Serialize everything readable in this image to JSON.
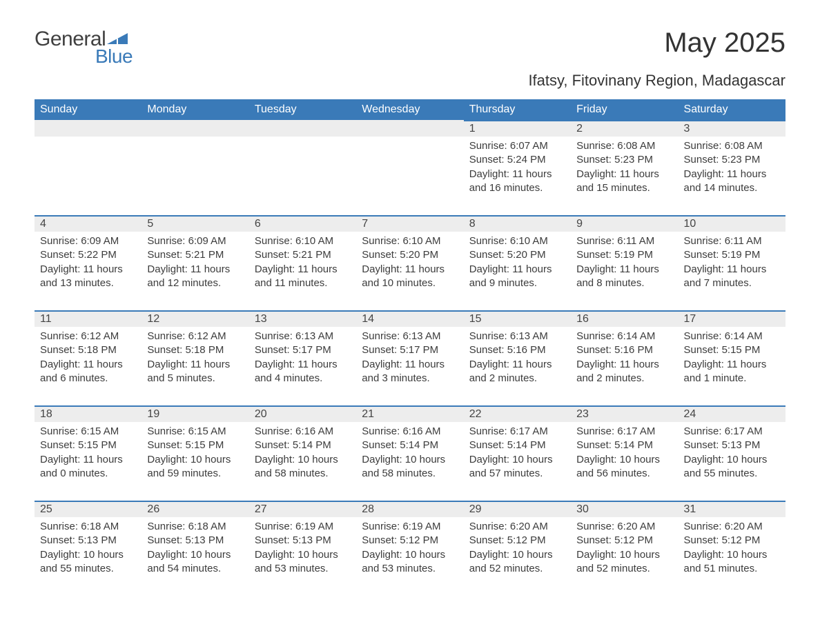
{
  "brand": {
    "text_general": "General",
    "text_blue": "Blue",
    "general_color": "#404040",
    "blue_color": "#3a7ab8",
    "icon_color": "#3a7ab8"
  },
  "title": "May 2025",
  "location": "Ifatsy, Fitovinany Region, Madagascar",
  "colors": {
    "header_bg": "#3a7ab8",
    "header_text": "#ffffff",
    "daynum_bg": "#ededed",
    "day_border_top": "#3a7ab8",
    "body_text": "#3c3c3c",
    "page_bg": "#ffffff"
  },
  "typography": {
    "title_fontsize": 40,
    "location_fontsize": 22,
    "header_fontsize": 16,
    "daynum_fontsize": 16,
    "body_fontsize": 15
  },
  "calendar": {
    "columns": [
      "Sunday",
      "Monday",
      "Tuesday",
      "Wednesday",
      "Thursday",
      "Friday",
      "Saturday"
    ],
    "weeks": [
      [
        null,
        null,
        null,
        null,
        {
          "day": "1",
          "sunrise": "Sunrise: 6:07 AM",
          "sunset": "Sunset: 5:24 PM",
          "daylight": "Daylight: 11 hours and 16 minutes."
        },
        {
          "day": "2",
          "sunrise": "Sunrise: 6:08 AM",
          "sunset": "Sunset: 5:23 PM",
          "daylight": "Daylight: 11 hours and 15 minutes."
        },
        {
          "day": "3",
          "sunrise": "Sunrise: 6:08 AM",
          "sunset": "Sunset: 5:23 PM",
          "daylight": "Daylight: 11 hours and 14 minutes."
        }
      ],
      [
        {
          "day": "4",
          "sunrise": "Sunrise: 6:09 AM",
          "sunset": "Sunset: 5:22 PM",
          "daylight": "Daylight: 11 hours and 13 minutes."
        },
        {
          "day": "5",
          "sunrise": "Sunrise: 6:09 AM",
          "sunset": "Sunset: 5:21 PM",
          "daylight": "Daylight: 11 hours and 12 minutes."
        },
        {
          "day": "6",
          "sunrise": "Sunrise: 6:10 AM",
          "sunset": "Sunset: 5:21 PM",
          "daylight": "Daylight: 11 hours and 11 minutes."
        },
        {
          "day": "7",
          "sunrise": "Sunrise: 6:10 AM",
          "sunset": "Sunset: 5:20 PM",
          "daylight": "Daylight: 11 hours and 10 minutes."
        },
        {
          "day": "8",
          "sunrise": "Sunrise: 6:10 AM",
          "sunset": "Sunset: 5:20 PM",
          "daylight": "Daylight: 11 hours and 9 minutes."
        },
        {
          "day": "9",
          "sunrise": "Sunrise: 6:11 AM",
          "sunset": "Sunset: 5:19 PM",
          "daylight": "Daylight: 11 hours and 8 minutes."
        },
        {
          "day": "10",
          "sunrise": "Sunrise: 6:11 AM",
          "sunset": "Sunset: 5:19 PM",
          "daylight": "Daylight: 11 hours and 7 minutes."
        }
      ],
      [
        {
          "day": "11",
          "sunrise": "Sunrise: 6:12 AM",
          "sunset": "Sunset: 5:18 PM",
          "daylight": "Daylight: 11 hours and 6 minutes."
        },
        {
          "day": "12",
          "sunrise": "Sunrise: 6:12 AM",
          "sunset": "Sunset: 5:18 PM",
          "daylight": "Daylight: 11 hours and 5 minutes."
        },
        {
          "day": "13",
          "sunrise": "Sunrise: 6:13 AM",
          "sunset": "Sunset: 5:17 PM",
          "daylight": "Daylight: 11 hours and 4 minutes."
        },
        {
          "day": "14",
          "sunrise": "Sunrise: 6:13 AM",
          "sunset": "Sunset: 5:17 PM",
          "daylight": "Daylight: 11 hours and 3 minutes."
        },
        {
          "day": "15",
          "sunrise": "Sunrise: 6:13 AM",
          "sunset": "Sunset: 5:16 PM",
          "daylight": "Daylight: 11 hours and 2 minutes."
        },
        {
          "day": "16",
          "sunrise": "Sunrise: 6:14 AM",
          "sunset": "Sunset: 5:16 PM",
          "daylight": "Daylight: 11 hours and 2 minutes."
        },
        {
          "day": "17",
          "sunrise": "Sunrise: 6:14 AM",
          "sunset": "Sunset: 5:15 PM",
          "daylight": "Daylight: 11 hours and 1 minute."
        }
      ],
      [
        {
          "day": "18",
          "sunrise": "Sunrise: 6:15 AM",
          "sunset": "Sunset: 5:15 PM",
          "daylight": "Daylight: 11 hours and 0 minutes."
        },
        {
          "day": "19",
          "sunrise": "Sunrise: 6:15 AM",
          "sunset": "Sunset: 5:15 PM",
          "daylight": "Daylight: 10 hours and 59 minutes."
        },
        {
          "day": "20",
          "sunrise": "Sunrise: 6:16 AM",
          "sunset": "Sunset: 5:14 PM",
          "daylight": "Daylight: 10 hours and 58 minutes."
        },
        {
          "day": "21",
          "sunrise": "Sunrise: 6:16 AM",
          "sunset": "Sunset: 5:14 PM",
          "daylight": "Daylight: 10 hours and 58 minutes."
        },
        {
          "day": "22",
          "sunrise": "Sunrise: 6:17 AM",
          "sunset": "Sunset: 5:14 PM",
          "daylight": "Daylight: 10 hours and 57 minutes."
        },
        {
          "day": "23",
          "sunrise": "Sunrise: 6:17 AM",
          "sunset": "Sunset: 5:14 PM",
          "daylight": "Daylight: 10 hours and 56 minutes."
        },
        {
          "day": "24",
          "sunrise": "Sunrise: 6:17 AM",
          "sunset": "Sunset: 5:13 PM",
          "daylight": "Daylight: 10 hours and 55 minutes."
        }
      ],
      [
        {
          "day": "25",
          "sunrise": "Sunrise: 6:18 AM",
          "sunset": "Sunset: 5:13 PM",
          "daylight": "Daylight: 10 hours and 55 minutes."
        },
        {
          "day": "26",
          "sunrise": "Sunrise: 6:18 AM",
          "sunset": "Sunset: 5:13 PM",
          "daylight": "Daylight: 10 hours and 54 minutes."
        },
        {
          "day": "27",
          "sunrise": "Sunrise: 6:19 AM",
          "sunset": "Sunset: 5:13 PM",
          "daylight": "Daylight: 10 hours and 53 minutes."
        },
        {
          "day": "28",
          "sunrise": "Sunrise: 6:19 AM",
          "sunset": "Sunset: 5:12 PM",
          "daylight": "Daylight: 10 hours and 53 minutes."
        },
        {
          "day": "29",
          "sunrise": "Sunrise: 6:20 AM",
          "sunset": "Sunset: 5:12 PM",
          "daylight": "Daylight: 10 hours and 52 minutes."
        },
        {
          "day": "30",
          "sunrise": "Sunrise: 6:20 AM",
          "sunset": "Sunset: 5:12 PM",
          "daylight": "Daylight: 10 hours and 52 minutes."
        },
        {
          "day": "31",
          "sunrise": "Sunrise: 6:20 AM",
          "sunset": "Sunset: 5:12 PM",
          "daylight": "Daylight: 10 hours and 51 minutes."
        }
      ]
    ]
  }
}
